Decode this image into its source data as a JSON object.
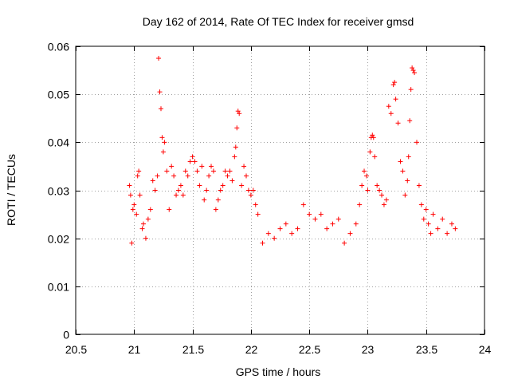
{
  "chart_data": {
    "type": "scatter",
    "title": "Day 162 of 2014, Rate Of TEC Index for receiver gmsd",
    "xlabel": "GPS time / hours",
    "ylabel": "ROTI / TECUs",
    "xlim": [
      20.5,
      24
    ],
    "ylim": [
      0,
      0.06
    ],
    "xticks": [
      20.5,
      21,
      21.5,
      22,
      22.5,
      23,
      23.5,
      24
    ],
    "xtick_labels": [
      "20.5",
      "21",
      "21.5",
      "22",
      "22.5",
      "23",
      "23.5",
      "24"
    ],
    "yticks": [
      0,
      0.01,
      0.02,
      0.03,
      0.04,
      0.05,
      0.06
    ],
    "ytick_labels": [
      "0",
      "0.01",
      "0.02",
      "0.03",
      "0.04",
      "0.05",
      "0.06"
    ],
    "grid": true,
    "marker": "+",
    "color": "#ff0000",
    "series": [
      {
        "name": "ROTI",
        "points": [
          [
            20.96,
            0.031
          ],
          [
            20.97,
            0.029
          ],
          [
            20.98,
            0.019
          ],
          [
            20.99,
            0.026
          ],
          [
            21.0,
            0.027
          ],
          [
            21.02,
            0.025
          ],
          [
            21.03,
            0.033
          ],
          [
            21.04,
            0.034
          ],
          [
            21.05,
            0.029
          ],
          [
            21.07,
            0.022
          ],
          [
            21.08,
            0.023
          ],
          [
            21.1,
            0.02
          ],
          [
            21.12,
            0.024
          ],
          [
            21.14,
            0.026
          ],
          [
            21.16,
            0.032
          ],
          [
            21.18,
            0.03
          ],
          [
            21.2,
            0.033
          ],
          [
            21.21,
            0.0575
          ],
          [
            21.22,
            0.0505
          ],
          [
            21.23,
            0.047
          ],
          [
            21.24,
            0.041
          ],
          [
            21.25,
            0.038
          ],
          [
            21.26,
            0.04
          ],
          [
            21.28,
            0.034
          ],
          [
            21.3,
            0.026
          ],
          [
            21.32,
            0.035
          ],
          [
            21.34,
            0.033
          ],
          [
            21.36,
            0.029
          ],
          [
            21.38,
            0.03
          ],
          [
            21.4,
            0.031
          ],
          [
            21.42,
            0.029
          ],
          [
            21.44,
            0.034
          ],
          [
            21.46,
            0.033
          ],
          [
            21.48,
            0.036
          ],
          [
            21.5,
            0.037
          ],
          [
            21.52,
            0.036
          ],
          [
            21.54,
            0.034
          ],
          [
            21.56,
            0.031
          ],
          [
            21.58,
            0.035
          ],
          [
            21.6,
            0.028
          ],
          [
            21.62,
            0.03
          ],
          [
            21.64,
            0.033
          ],
          [
            21.66,
            0.035
          ],
          [
            21.68,
            0.034
          ],
          [
            21.7,
            0.026
          ],
          [
            21.72,
            0.028
          ],
          [
            21.74,
            0.03
          ],
          [
            21.76,
            0.031
          ],
          [
            21.78,
            0.034
          ],
          [
            21.8,
            0.033
          ],
          [
            21.82,
            0.034
          ],
          [
            21.84,
            0.032
          ],
          [
            21.86,
            0.037
          ],
          [
            21.87,
            0.039
          ],
          [
            21.88,
            0.043
          ],
          [
            21.89,
            0.0465
          ],
          [
            21.9,
            0.046
          ],
          [
            21.92,
            0.031
          ],
          [
            21.94,
            0.035
          ],
          [
            21.96,
            0.033
          ],
          [
            21.98,
            0.03
          ],
          [
            22.0,
            0.029
          ],
          [
            22.02,
            0.03
          ],
          [
            22.04,
            0.027
          ],
          [
            22.06,
            0.025
          ],
          [
            22.1,
            0.019
          ],
          [
            22.15,
            0.021
          ],
          [
            22.2,
            0.02
          ],
          [
            22.25,
            0.022
          ],
          [
            22.3,
            0.023
          ],
          [
            22.35,
            0.021
          ],
          [
            22.4,
            0.022
          ],
          [
            22.45,
            0.027
          ],
          [
            22.5,
            0.025
          ],
          [
            22.55,
            0.024
          ],
          [
            22.6,
            0.025
          ],
          [
            22.65,
            0.022
          ],
          [
            22.7,
            0.023
          ],
          [
            22.75,
            0.024
          ],
          [
            22.8,
            0.019
          ],
          [
            22.85,
            0.021
          ],
          [
            22.9,
            0.023
          ],
          [
            22.93,
            0.027
          ],
          [
            22.95,
            0.031
          ],
          [
            22.97,
            0.034
          ],
          [
            22.99,
            0.033
          ],
          [
            23.0,
            0.03
          ],
          [
            23.02,
            0.038
          ],
          [
            23.03,
            0.041
          ],
          [
            23.04,
            0.0415
          ],
          [
            23.05,
            0.041
          ],
          [
            23.06,
            0.037
          ],
          [
            23.08,
            0.031
          ],
          [
            23.1,
            0.03
          ],
          [
            23.12,
            0.029
          ],
          [
            23.14,
            0.027
          ],
          [
            23.16,
            0.028
          ],
          [
            23.18,
            0.0475
          ],
          [
            23.2,
            0.046
          ],
          [
            23.22,
            0.052
          ],
          [
            23.23,
            0.0525
          ],
          [
            23.24,
            0.049
          ],
          [
            23.26,
            0.044
          ],
          [
            23.28,
            0.036
          ],
          [
            23.3,
            0.034
          ],
          [
            23.32,
            0.029
          ],
          [
            23.34,
            0.032
          ],
          [
            23.35,
            0.037
          ],
          [
            23.36,
            0.0445
          ],
          [
            23.37,
            0.051
          ],
          [
            23.38,
            0.0555
          ],
          [
            23.39,
            0.055
          ],
          [
            23.4,
            0.0545
          ],
          [
            23.42,
            0.04
          ],
          [
            23.44,
            0.031
          ],
          [
            23.46,
            0.027
          ],
          [
            23.48,
            0.024
          ],
          [
            23.5,
            0.026
          ],
          [
            23.52,
            0.023
          ],
          [
            23.54,
            0.021
          ],
          [
            23.56,
            0.025
          ],
          [
            23.6,
            0.022
          ],
          [
            23.64,
            0.024
          ],
          [
            23.68,
            0.021
          ],
          [
            23.72,
            0.023
          ],
          [
            23.75,
            0.022
          ]
        ]
      }
    ]
  }
}
